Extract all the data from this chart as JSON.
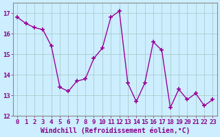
{
  "x": [
    0,
    1,
    2,
    3,
    4,
    5,
    6,
    7,
    8,
    9,
    10,
    11,
    12,
    13,
    14,
    15,
    16,
    17,
    18,
    19,
    20,
    21,
    22,
    23
  ],
  "y": [
    16.8,
    16.5,
    16.3,
    16.2,
    15.4,
    13.4,
    13.2,
    13.7,
    13.8,
    14.8,
    15.3,
    16.8,
    17.1,
    13.6,
    12.7,
    13.6,
    15.6,
    15.2,
    12.4,
    13.3,
    12.8,
    13.1,
    12.5,
    12.8
  ],
  "line_color": "#990099",
  "marker": "+",
  "markersize": 4,
  "markeredgewidth": 1.2,
  "linewidth": 1.0,
  "bg_color": "#cceeff",
  "grid_color": "#aacccc",
  "xlabel": "Windchill (Refroidissement éolien,°C)",
  "xlabel_fontsize": 7,
  "tick_fontsize": 6.5,
  "ylim": [
    12,
    17.5
  ],
  "yticks": [
    12,
    13,
    14,
    15,
    16,
    17
  ],
  "xticks": [
    0,
    1,
    2,
    3,
    4,
    5,
    6,
    7,
    8,
    9,
    10,
    11,
    12,
    13,
    14,
    15,
    16,
    17,
    18,
    19,
    20,
    21,
    22,
    23
  ],
  "text_color": "#880088"
}
